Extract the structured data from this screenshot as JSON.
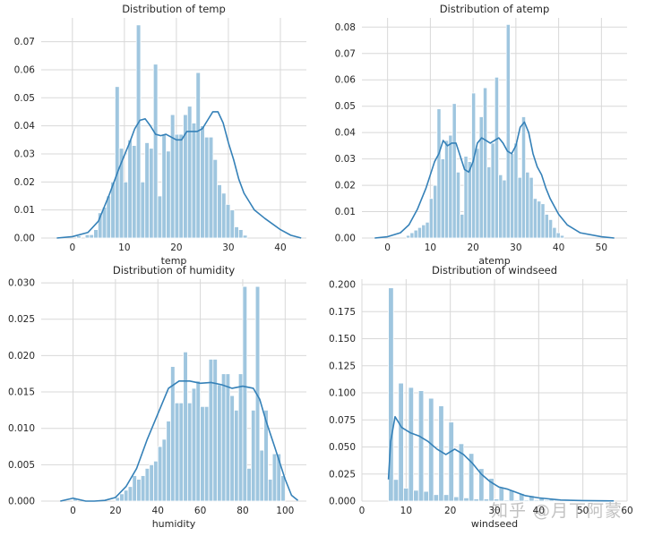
{
  "chart_data": [
    {
      "type": "histogram+kde",
      "title": "Distribution of temp",
      "xlabel": "temp",
      "ylabel": "",
      "xlim": [
        -6,
        45
      ],
      "ylim": [
        0,
        0.0785
      ],
      "xticks": [
        0,
        10,
        20,
        30,
        40
      ],
      "yticks": [
        0.0,
        0.01,
        0.02,
        0.03,
        0.04,
        0.05,
        0.06,
        0.07
      ],
      "ytick_labels": [
        "0.00",
        "0.01",
        "0.02",
        "0.03",
        "0.04",
        "0.05",
        "0.06",
        "0.07"
      ],
      "grid": true,
      "bin_edges": [
        0.82,
        1.64,
        2.46,
        3.28,
        4.1,
        4.92,
        5.74,
        6.56,
        7.38,
        8.2,
        9.02,
        9.84,
        10.66,
        11.48,
        12.3,
        13.12,
        13.94,
        14.76,
        15.58,
        16.4,
        17.22,
        18.04,
        18.86,
        19.68,
        20.5,
        21.32,
        22.14,
        22.96,
        23.78,
        24.6,
        25.42,
        26.24,
        27.06,
        27.88,
        28.7,
        29.52,
        30.34,
        31.16,
        31.98,
        32.8,
        33.62,
        34.44,
        35.26,
        36.08,
        36.9,
        37.72,
        38.54,
        39.36,
        40.18,
        41.0
      ],
      "values": [
        0.0008,
        0,
        0.0012,
        0.0012,
        0.003,
        0.009,
        0.011,
        0.015,
        0.02,
        0.054,
        0.032,
        0.02,
        0.035,
        0.033,
        0.076,
        0.02,
        0.034,
        0.032,
        0.062,
        0.015,
        0.037,
        0.031,
        0.044,
        0.037,
        0.037,
        0.044,
        0.047,
        0.041,
        0.059,
        0.04,
        0.036,
        0.036,
        0.028,
        0.019,
        0.016,
        0.012,
        0.01,
        0.004,
        0.003,
        0.001,
        0,
        0,
        0,
        0,
        0,
        0,
        0,
        0,
        0
      ],
      "kde_x": [
        -3,
        0,
        3,
        5,
        7,
        9,
        11,
        12,
        13,
        14,
        15,
        16,
        17,
        18,
        19,
        20,
        21,
        22,
        23,
        24,
        25,
        26,
        27,
        28,
        29,
        30,
        31,
        32,
        33,
        34,
        35,
        37,
        40,
        42,
        44
      ],
      "kde_y": [
        0.0,
        0.0005,
        0.002,
        0.006,
        0.015,
        0.025,
        0.034,
        0.039,
        0.042,
        0.0425,
        0.04,
        0.037,
        0.0365,
        0.037,
        0.036,
        0.035,
        0.035,
        0.038,
        0.038,
        0.038,
        0.039,
        0.042,
        0.045,
        0.045,
        0.041,
        0.034,
        0.028,
        0.021,
        0.016,
        0.013,
        0.01,
        0.007,
        0.003,
        0.001,
        0.0
      ]
    },
    {
      "type": "histogram+kde",
      "title": "Distribution of atemp",
      "xlabel": "atemp",
      "ylabel": "",
      "xlim": [
        -6,
        56
      ],
      "ylim": [
        0,
        0.0835
      ],
      "xticks": [
        0,
        10,
        20,
        30,
        40,
        50
      ],
      "yticks": [
        0.0,
        0.01,
        0.02,
        0.03,
        0.04,
        0.05,
        0.06,
        0.07,
        0.08
      ],
      "ytick_labels": [
        "0.00",
        "0.01",
        "0.02",
        "0.03",
        "0.04",
        "0.05",
        "0.06",
        "0.07",
        "0.08"
      ],
      "grid": true,
      "bin_edges": [
        0.76,
        1.66,
        2.56,
        3.46,
        4.36,
        5.26,
        6.16,
        7.06,
        7.96,
        8.86,
        9.76,
        10.66,
        11.56,
        12.46,
        13.36,
        14.26,
        15.16,
        16.06,
        16.96,
        17.86,
        18.76,
        19.66,
        20.56,
        21.46,
        22.36,
        23.26,
        24.16,
        25.06,
        25.96,
        26.86,
        27.76,
        28.66,
        29.56,
        30.46,
        31.36,
        32.26,
        33.16,
        34.06,
        34.96,
        35.86,
        36.76,
        37.66,
        38.56,
        39.46,
        40.36,
        41.26,
        42.16,
        43.06,
        43.96,
        44.86,
        45.76
      ],
      "values": [
        0,
        0,
        0,
        0,
        0.001,
        0.002,
        0.003,
        0.004,
        0.005,
        0.006,
        0.015,
        0.02,
        0.049,
        0.03,
        0.037,
        0.039,
        0.051,
        0.025,
        0.009,
        0.031,
        0.029,
        0.055,
        0.034,
        0.046,
        0.057,
        0.027,
        0.036,
        0.061,
        0.024,
        0.022,
        0.081,
        0.032,
        0.036,
        0.023,
        0.046,
        0.025,
        0.023,
        0.015,
        0.014,
        0.013,
        0.009,
        0.007,
        0.004,
        0.002,
        0.001,
        0,
        0,
        0,
        0,
        0
      ],
      "kde_x": [
        -3,
        0,
        3,
        5,
        7,
        9,
        11,
        12,
        13,
        14,
        15,
        16,
        17,
        18,
        19,
        20,
        21,
        22,
        23,
        24,
        25,
        26,
        27,
        28,
        29,
        30,
        31,
        32,
        33,
        34,
        35,
        36,
        37,
        38,
        40,
        42,
        45,
        50,
        53
      ],
      "kde_y": [
        0.0,
        0.0005,
        0.002,
        0.005,
        0.011,
        0.019,
        0.029,
        0.032,
        0.037,
        0.035,
        0.036,
        0.036,
        0.031,
        0.026,
        0.025,
        0.029,
        0.036,
        0.038,
        0.037,
        0.036,
        0.037,
        0.038,
        0.036,
        0.033,
        0.032,
        0.035,
        0.042,
        0.044,
        0.04,
        0.032,
        0.027,
        0.024,
        0.019,
        0.015,
        0.009,
        0.005,
        0.002,
        0.0005,
        0.0
      ]
    },
    {
      "type": "histogram+kde",
      "title": "Distribution of humidity",
      "xlabel": "humidity",
      "ylabel": "",
      "xlim": [
        -15,
        110
      ],
      "ylim": [
        0,
        0.0305
      ],
      "xticks": [
        0,
        20,
        40,
        60,
        80,
        100
      ],
      "yticks": [
        0.0,
        0.005,
        0.01,
        0.015,
        0.02,
        0.025,
        0.03
      ],
      "ytick_labels": [
        "0.000",
        "0.005",
        "0.010",
        "0.015",
        "0.020",
        "0.025",
        "0.030"
      ],
      "grid": true,
      "bin_edges": [
        0,
        2,
        4,
        6,
        8,
        10,
        12,
        14,
        16,
        18,
        20,
        22,
        24,
        26,
        28,
        30,
        32,
        34,
        36,
        38,
        40,
        42,
        44,
        46,
        48,
        50,
        52,
        54,
        56,
        58,
        60,
        62,
        64,
        66,
        68,
        70,
        72,
        74,
        76,
        78,
        80,
        82,
        84,
        86,
        88,
        90,
        92,
        94,
        96,
        98,
        100
      ],
      "values": [
        0.0004,
        0,
        0,
        0,
        0,
        0,
        0,
        0,
        0,
        0,
        0.0005,
        0.001,
        0.0015,
        0.002,
        0.0035,
        0.003,
        0.0035,
        0.0045,
        0.005,
        0.0055,
        0.0075,
        0.0085,
        0.011,
        0.0185,
        0.0135,
        0.0135,
        0.0205,
        0.0135,
        0.0155,
        0.0165,
        0.013,
        0.013,
        0.0195,
        0.0195,
        0.016,
        0.0175,
        0.0175,
        0.0145,
        0.0125,
        0.0175,
        0.0295,
        0.0045,
        0.0125,
        0.0295,
        0.007,
        0.0125,
        0.003,
        0.0065,
        0.0065,
        0.0035
      ],
      "kde_x": [
        -6,
        -3,
        0,
        3,
        6,
        10,
        15,
        20,
        25,
        30,
        35,
        40,
        45,
        50,
        55,
        60,
        65,
        70,
        75,
        80,
        85,
        88,
        91,
        95,
        100,
        103,
        106
      ],
      "kde_y": [
        0.0,
        0.0002,
        0.0004,
        0.0002,
        0.0,
        0.0,
        0.0001,
        0.0005,
        0.002,
        0.0045,
        0.0085,
        0.012,
        0.0155,
        0.0165,
        0.0165,
        0.0162,
        0.0163,
        0.016,
        0.0155,
        0.0158,
        0.0155,
        0.014,
        0.011,
        0.0075,
        0.003,
        0.0008,
        0.0001
      ]
    },
    {
      "type": "histogram+kde",
      "title": "Distribution of windseed",
      "xlabel": "windseed",
      "ylabel": "",
      "xlim": [
        0,
        60
      ],
      "ylim": [
        0,
        0.205
      ],
      "xticks": [
        0,
        10,
        20,
        30,
        40,
        50,
        60
      ],
      "yticks": [
        0.0,
        0.025,
        0.05,
        0.075,
        0.1,
        0.125,
        0.15,
        0.175,
        0.2
      ],
      "ytick_labels": [
        "0.000",
        "0.025",
        "0.050",
        "0.075",
        "0.100",
        "0.125",
        "0.150",
        "0.175",
        "0.200"
      ],
      "grid": true,
      "bin_edges": [
        6.0,
        7.14,
        8.27,
        9.41,
        10.55,
        11.68,
        12.82,
        13.96,
        15.09,
        16.23,
        17.37,
        18.5,
        19.64,
        20.78,
        21.91,
        23.05,
        24.19,
        25.32,
        26.46,
        27.6,
        28.73,
        29.87,
        31.01,
        32.14,
        33.28,
        34.42,
        35.55,
        36.69,
        37.83,
        38.96,
        40.1,
        41.24,
        42.37,
        43.51,
        44.65,
        45.78,
        46.92,
        48.06,
        49.19,
        50.33,
        51.47,
        52.6,
        53.74,
        54.88,
        56.01,
        57.15
      ],
      "values": [
        0.197,
        0.02,
        0.109,
        0.012,
        0.105,
        0.01,
        0.102,
        0.009,
        0.095,
        0.006,
        0.088,
        0.006,
        0.073,
        0.004,
        0.053,
        0.003,
        0.044,
        0.002,
        0.03,
        0.002,
        0.021,
        0.002,
        0.013,
        0.001,
        0.01,
        0.001,
        0.007,
        0.001,
        0.005,
        0.001,
        0.003,
        0.001,
        0.002,
        0.001,
        0.001,
        0.001,
        0.001,
        0.001,
        0.001,
        0.001,
        0.001,
        0.001,
        0.001,
        0.001,
        0.001
      ],
      "kde_x": [
        6.0,
        6.5,
        7.5,
        9,
        11,
        13,
        15,
        17,
        19,
        21,
        23,
        25,
        27,
        29,
        31,
        33,
        35,
        37,
        40,
        45,
        50,
        55,
        57
      ],
      "kde_y": [
        0.02,
        0.055,
        0.078,
        0.068,
        0.063,
        0.06,
        0.055,
        0.048,
        0.043,
        0.048,
        0.043,
        0.035,
        0.025,
        0.018,
        0.013,
        0.011,
        0.008,
        0.005,
        0.003,
        0.001,
        0.0005,
        0.0003,
        0.0002
      ]
    }
  ],
  "watermark": "知乎 @月下阿蒙",
  "colors": {
    "bar_fill": "#9fc6df",
    "bar_edge": "#ffffff",
    "kde_line": "#3581b8",
    "grid": "#d8d8d8",
    "axis_text": "#262626"
  }
}
